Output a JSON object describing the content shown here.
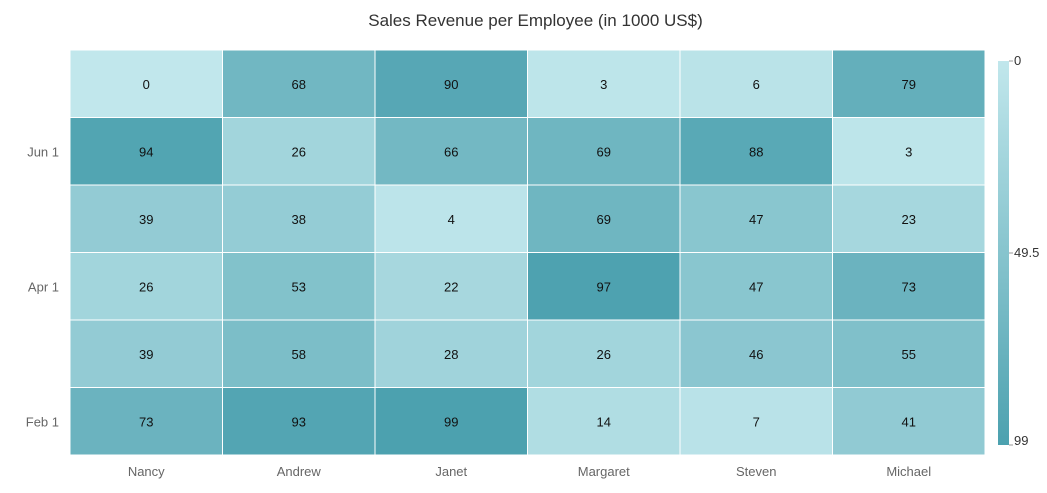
{
  "chart_data": {
    "type": "heatmap",
    "title": "Sales Revenue per Employee (in 1000 US$)",
    "x_categories": [
      "Nancy",
      "Andrew",
      "Janet",
      "Margaret",
      "Steven",
      "Michael"
    ],
    "y_categories": [
      "",
      "Jun 1",
      "",
      "Apr 1",
      "",
      "Feb 1"
    ],
    "values": [
      [
        0,
        68,
        90,
        3,
        6,
        79
      ],
      [
        94,
        26,
        66,
        69,
        88,
        3
      ],
      [
        39,
        38,
        4,
        69,
        47,
        23
      ],
      [
        26,
        53,
        22,
        97,
        47,
        73
      ],
      [
        39,
        58,
        28,
        26,
        46,
        55
      ],
      [
        73,
        93,
        99,
        14,
        7,
        41
      ]
    ],
    "color_scale": {
      "min": 0,
      "max": 99,
      "min_color": "#C1E7EC",
      "max_color": "#4CA1AF"
    },
    "legend": {
      "position": "right",
      "labels": [
        "0",
        "49.5",
        "99"
      ]
    }
  }
}
